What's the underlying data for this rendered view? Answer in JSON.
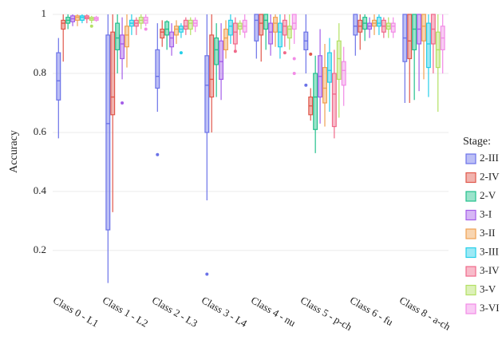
{
  "chart_data": {
    "type": "box",
    "y_label": "Accuracy",
    "legend_title": "Stage:",
    "categories": [
      "Class 0 - L1",
      "Class 1 - L2",
      "Class 2 - L3",
      "Class 3 - L4",
      "Class 4 - nu",
      "Class 5 - p-ch",
      "Class 6 - fu",
      "Class 8 - a-ch"
    ],
    "ylim": [
      0.07,
      1.0
    ],
    "yticks": [
      0.2,
      0.4,
      0.6,
      0.8,
      1
    ],
    "grid": true,
    "legend_position": "right",
    "series": [
      {
        "name": "2-III",
        "color": "#6b72e8",
        "values": [
          {
            "min": 0.58,
            "q1": 0.71,
            "median": 0.775,
            "q3": 0.87,
            "max": 0.92
          },
          {
            "min": 0.09,
            "q1": 0.27,
            "median": 0.63,
            "q3": 0.93,
            "max": 1
          },
          {
            "min": 0.67,
            "q1": 0.75,
            "median": 0.79,
            "q3": 0.88,
            "max": 0.97,
            "outliers": [
              0.525
            ]
          },
          {
            "min": 0.37,
            "q1": 0.6,
            "median": 0.76,
            "q3": 0.86,
            "max": 1,
            "outliers": [
              0.12
            ]
          },
          {
            "min": 0.85,
            "q1": 0.91,
            "median": 0.98,
            "q3": 1,
            "max": 1
          },
          {
            "min": 0.8,
            "q1": 0.88,
            "median": 0.91,
            "q3": 0.94,
            "max": 1,
            "outliers": [
              0.76
            ]
          },
          {
            "min": 0.86,
            "q1": 0.93,
            "median": 0.96,
            "q3": 1,
            "max": 1
          },
          {
            "min": 0.7,
            "q1": 0.84,
            "median": 0.92,
            "q3": 1,
            "max": 1
          }
        ]
      },
      {
        "name": "2-IV",
        "color": "#e0574b",
        "values": [
          {
            "min": 0.84,
            "q1": 0.95,
            "median": 0.97,
            "q3": 0.98,
            "max": 1
          },
          {
            "min": 0.33,
            "q1": 0.66,
            "median": 0.72,
            "q3": 0.94,
            "max": 1
          },
          {
            "min": 0.89,
            "q1": 0.92,
            "median": 0.94,
            "q3": 0.95,
            "max": 0.98
          },
          {
            "min": 0.6,
            "q1": 0.72,
            "median": 0.78,
            "q3": 0.93,
            "max": 1
          },
          {
            "min": 0.84,
            "q1": 0.93,
            "median": 0.97,
            "q3": 1,
            "max": 1
          },
          {
            "min": 0.64,
            "q1": 0.66,
            "median": 0.69,
            "q3": 0.72,
            "max": 0.75,
            "outliers": [
              0.865
            ]
          },
          {
            "min": 0.88,
            "q1": 0.94,
            "median": 0.96,
            "q3": 0.98,
            "max": 1
          },
          {
            "min": 0.7,
            "q1": 0.85,
            "median": 0.91,
            "q3": 1,
            "max": 1
          }
        ]
      },
      {
        "name": "2-V",
        "color": "#22c08c",
        "values": [
          {
            "min": 0.95,
            "q1": 0.97,
            "median": 0.98,
            "q3": 0.99,
            "max": 1
          },
          {
            "min": 0.8,
            "q1": 0.88,
            "median": 0.92,
            "q3": 0.97,
            "max": 1
          },
          {
            "min": 0.88,
            "q1": 0.93,
            "median": 0.95,
            "q3": 0.975,
            "max": 0.98
          },
          {
            "min": 0.72,
            "q1": 0.83,
            "median": 0.88,
            "q3": 0.92,
            "max": 0.97
          },
          {
            "min": 0.88,
            "q1": 0.95,
            "median": 0.98,
            "q3": 1,
            "max": 1
          },
          {
            "min": 0.53,
            "q1": 0.61,
            "median": 0.72,
            "q3": 0.8,
            "max": 0.86
          },
          {
            "min": 0.91,
            "q1": 0.95,
            "median": 0.97,
            "q3": 0.99,
            "max": 1
          },
          {
            "min": 0.71,
            "q1": 0.88,
            "median": 0.95,
            "q3": 1,
            "max": 1
          }
        ]
      },
      {
        "name": "3-I",
        "color": "#a35de8",
        "values": [
          {
            "min": 0.96,
            "q1": 0.975,
            "median": 0.985,
            "q3": 0.995,
            "max": 1
          },
          {
            "min": 0.78,
            "q1": 0.85,
            "median": 0.9,
            "q3": 0.93,
            "max": 0.99,
            "outliers": [
              0.7
            ]
          },
          {
            "min": 0.86,
            "q1": 0.89,
            "median": 0.92,
            "q3": 0.94,
            "max": 0.97
          },
          {
            "min": 0.71,
            "q1": 0.78,
            "median": 0.84,
            "q3": 0.91,
            "max": 0.97
          },
          {
            "min": 0.86,
            "q1": 0.9,
            "median": 0.94,
            "q3": 0.97,
            "max": 1
          },
          {
            "min": 0.63,
            "q1": 0.72,
            "median": 0.79,
            "q3": 0.86,
            "max": 0.95
          },
          {
            "min": 0.92,
            "q1": 0.95,
            "median": 0.96,
            "q3": 0.97,
            "max": 0.99
          },
          {
            "min": 0.74,
            "q1": 0.9,
            "median": 0.95,
            "q3": 1,
            "max": 1
          }
        ]
      },
      {
        "name": "3-II",
        "color": "#f0a152",
        "values": [
          {
            "min": 0.96,
            "q1": 0.98,
            "median": 0.99,
            "q3": 0.995,
            "max": 1
          },
          {
            "min": 0.82,
            "q1": 0.89,
            "median": 0.93,
            "q3": 0.96,
            "max": 1
          },
          {
            "min": 0.9,
            "q1": 0.93,
            "median": 0.95,
            "q3": 0.96,
            "max": 0.98
          },
          {
            "min": 0.85,
            "q1": 0.88,
            "median": 0.92,
            "q3": 0.95,
            "max": 0.98
          },
          {
            "min": 0.89,
            "q1": 0.94,
            "median": 0.97,
            "q3": 0.99,
            "max": 1
          },
          {
            "min": 0.62,
            "q1": 0.7,
            "median": 0.75,
            "q3": 0.82,
            "max": 0.9
          },
          {
            "min": 0.93,
            "q1": 0.96,
            "median": 0.97,
            "q3": 0.98,
            "max": 1
          },
          {
            "min": 0.78,
            "q1": 0.91,
            "median": 0.96,
            "q3": 1,
            "max": 1
          }
        ]
      },
      {
        "name": "3-III",
        "color": "#25cfe8",
        "values": [
          {
            "min": 0.97,
            "q1": 0.98,
            "median": 0.99,
            "q3": 0.995,
            "max": 1
          },
          {
            "min": 0.93,
            "q1": 0.96,
            "median": 0.97,
            "q3": 0.98,
            "max": 1
          },
          {
            "min": 0.92,
            "q1": 0.94,
            "median": 0.95,
            "q3": 0.96,
            "max": 0.97,
            "outliers": [
              0.87
            ]
          },
          {
            "min": 0.9,
            "q1": 0.93,
            "median": 0.96,
            "q3": 0.98,
            "max": 1
          },
          {
            "min": 0.85,
            "q1": 0.89,
            "median": 0.94,
            "q3": 0.97,
            "max": 1
          },
          {
            "min": 0.67,
            "q1": 0.77,
            "median": 0.81,
            "q3": 0.87,
            "max": 0.92
          },
          {
            "min": 0.93,
            "q1": 0.96,
            "median": 0.97,
            "q3": 0.99,
            "max": 1
          },
          {
            "min": 0.72,
            "q1": 0.82,
            "median": 0.9,
            "q3": 0.97,
            "max": 1
          }
        ]
      },
      {
        "name": "3-IV",
        "color": "#f0698a",
        "values": [
          {
            "min": 0.97,
            "q1": 0.985,
            "median": 0.99,
            "q3": 0.995,
            "max": 1
          },
          {
            "min": 0.93,
            "q1": 0.96,
            "median": 0.97,
            "q3": 0.98,
            "max": 0.99
          },
          {
            "min": 0.93,
            "q1": 0.95,
            "median": 0.96,
            "q3": 0.98,
            "max": 0.99
          },
          {
            "min": 0.87,
            "q1": 0.9,
            "median": 0.94,
            "q3": 0.97,
            "max": 0.99,
            "outliers": [
              0.875
            ]
          },
          {
            "min": 0.89,
            "q1": 0.93,
            "median": 0.96,
            "q3": 0.98,
            "max": 1,
            "outliers": [
              0.87
            ]
          },
          {
            "min": 0.58,
            "q1": 0.62,
            "median": 0.73,
            "q3": 0.8,
            "max": 0.88
          },
          {
            "min": 0.92,
            "q1": 0.94,
            "median": 0.96,
            "q3": 0.98,
            "max": 0.99
          },
          {
            "min": 0.8,
            "q1": 0.9,
            "median": 0.95,
            "q3": 1,
            "max": 1
          }
        ]
      },
      {
        "name": "3-V",
        "color": "#b3e063",
        "values": [
          {
            "min": 0.97,
            "q1": 0.98,
            "median": 0.985,
            "q3": 0.99,
            "max": 0.995,
            "outliers": [
              0.96
            ]
          },
          {
            "min": 0.95,
            "q1": 0.97,
            "median": 0.98,
            "q3": 0.99,
            "max": 1
          },
          {
            "min": 0.93,
            "q1": 0.95,
            "median": 0.97,
            "q3": 0.98,
            "max": 0.99
          },
          {
            "min": 0.93,
            "q1": 0.95,
            "median": 0.96,
            "q3": 0.97,
            "max": 0.98
          },
          {
            "min": 0.88,
            "q1": 0.92,
            "median": 0.95,
            "q3": 0.96,
            "max": 1
          },
          {
            "min": 0.65,
            "q1": 0.78,
            "median": 0.85,
            "q3": 0.91,
            "max": 0.97
          },
          {
            "min": 0.92,
            "q1": 0.95,
            "median": 0.96,
            "q3": 0.97,
            "max": 0.99
          },
          {
            "min": 0.67,
            "q1": 0.82,
            "median": 0.88,
            "q3": 0.94,
            "max": 1
          }
        ]
      },
      {
        "name": "3-VI",
        "color": "#f28be6",
        "values": [
          {
            "min": 0.975,
            "q1": 0.98,
            "median": 0.985,
            "q3": 0.99,
            "max": 0.995
          },
          {
            "min": 0.96,
            "q1": 0.97,
            "median": 0.98,
            "q3": 0.99,
            "max": 1,
            "outliers": [
              0.95
            ]
          },
          {
            "min": 0.94,
            "q1": 0.96,
            "median": 0.97,
            "q3": 0.98,
            "max": 0.99
          },
          {
            "min": 0.92,
            "q1": 0.94,
            "median": 0.96,
            "q3": 0.98,
            "max": 1
          },
          {
            "min": 0.9,
            "q1": 0.95,
            "median": 0.97,
            "q3": 1,
            "max": 1,
            "outliers": [
              0.85,
              0.8
            ]
          },
          {
            "min": 0.69,
            "q1": 0.76,
            "median": 0.81,
            "q3": 0.84,
            "max": 0.89
          },
          {
            "min": 0.92,
            "q1": 0.94,
            "median": 0.96,
            "q3": 0.97,
            "max": 0.99
          },
          {
            "min": 0.8,
            "q1": 0.88,
            "median": 0.92,
            "q3": 0.96,
            "max": 1
          }
        ]
      }
    ]
  }
}
